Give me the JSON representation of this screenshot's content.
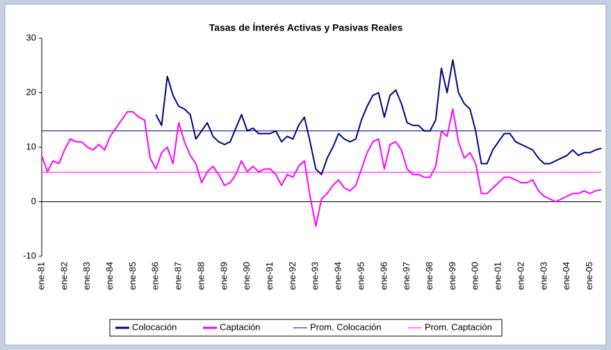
{
  "chart_data": {
    "type": "line",
    "title": "Tasas de Ínterés Activas y Pasivas Reales",
    "categories": [
      "ene-81",
      null,
      null,
      null,
      "ene-82",
      null,
      null,
      null,
      "ene-83",
      null,
      null,
      null,
      "ene-84",
      null,
      null,
      null,
      "ene-85",
      null,
      null,
      null,
      "ene-86",
      null,
      null,
      null,
      "ene-87",
      null,
      null,
      null,
      "ene-88",
      null,
      null,
      null,
      "ene-89",
      null,
      null,
      null,
      "ene-90",
      null,
      null,
      null,
      "ene-91",
      null,
      null,
      null,
      "ene-92",
      null,
      null,
      null,
      "ene-93",
      null,
      null,
      null,
      "ene-94",
      null,
      null,
      null,
      "ene-95",
      null,
      null,
      null,
      "ene-96",
      null,
      null,
      null,
      "ene-97",
      null,
      null,
      null,
      "ene-98",
      null,
      null,
      null,
      "ene-99",
      null,
      null,
      null,
      "ene-00",
      null,
      null,
      null,
      "ene-01",
      null,
      null,
      null,
      "ene-02",
      null,
      null,
      null,
      "ene-03",
      null,
      null,
      null,
      "ene-04",
      null,
      null,
      null,
      "ene-05",
      null,
      null
    ],
    "series": [
      {
        "name": "Colocación",
        "color": "#000080",
        "values": [
          null,
          null,
          null,
          null,
          null,
          null,
          null,
          null,
          null,
          null,
          null,
          null,
          null,
          null,
          null,
          null,
          null,
          null,
          null,
          null,
          16,
          14,
          23,
          19.5,
          17.5,
          17,
          16,
          11.5,
          13,
          14.5,
          12,
          11,
          10.5,
          11,
          13.5,
          16,
          13,
          13.5,
          12.5,
          12.5,
          12.5,
          13,
          11,
          12,
          11.5,
          14,
          15.5,
          11,
          6,
          5,
          8,
          10,
          12.5,
          11.5,
          11,
          11.5,
          15,
          17.5,
          19.5,
          20,
          15.5,
          19.5,
          20.5,
          18,
          14.5,
          14,
          14,
          13,
          13,
          15,
          24.5,
          20,
          26,
          20,
          18,
          17,
          13,
          7,
          7,
          9.5,
          11,
          12.5,
          12.5,
          11,
          10.5,
          10,
          9.5,
          8,
          7,
          7,
          7.5,
          8,
          8.5,
          9.5,
          8.5,
          9,
          9,
          9.5,
          9.8
        ]
      },
      {
        "name": "Captación",
        "color": "#ff00ff",
        "values": [
          8.5,
          5.5,
          7.5,
          7,
          9.5,
          11.5,
          11,
          11,
          10,
          9.5,
          10.5,
          9.5,
          12,
          13.5,
          15,
          16.5,
          16.5,
          15.5,
          15,
          8,
          6,
          9,
          10,
          7,
          14.5,
          11,
          8.5,
          7,
          3.5,
          5.5,
          6.5,
          5,
          3,
          3.5,
          5,
          7.5,
          5.5,
          6.5,
          5.5,
          6,
          6,
          5,
          3,
          5,
          4.5,
          6.5,
          7.5,
          1,
          -4.5,
          0.5,
          1.5,
          3,
          4,
          2.5,
          2,
          3,
          6,
          9,
          11,
          11.5,
          6,
          10.5,
          11,
          9.5,
          6,
          5,
          5,
          4.5,
          4.5,
          6.5,
          13,
          12,
          17,
          11,
          8,
          9,
          7,
          1.5,
          1.5,
          2.5,
          3.5,
          4.5,
          4.5,
          4,
          3.5,
          3.5,
          4,
          2,
          1,
          0.5,
          0,
          0.5,
          1,
          1.5,
          1.5,
          2,
          1.5,
          2,
          2.2
        ]
      }
    ],
    "reference_lines": [
      {
        "name": "Prom. Colocación",
        "color": "#000080",
        "value": 13
      },
      {
        "name": "Prom. Captación",
        "color": "#ff00ff",
        "value": 5.4
      }
    ],
    "ylim": [
      -10,
      30
    ],
    "yticks": [
      -10,
      0,
      10,
      20,
      30
    ]
  }
}
